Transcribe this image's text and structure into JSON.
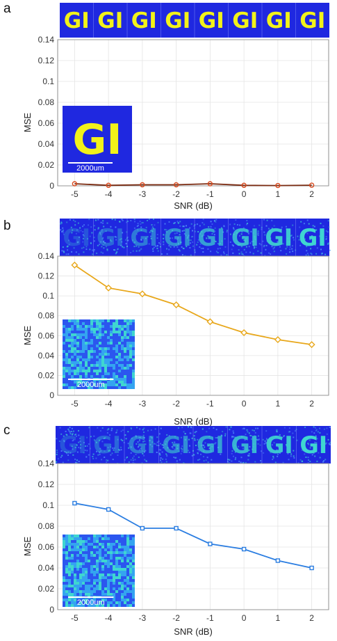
{
  "panel_labels": [
    "a",
    "b",
    "c"
  ],
  "strip_text": "GI",
  "inset_scale_labels": [
    "2000um",
    "2000um",
    "2000um"
  ],
  "colors": {
    "panel_a_line": "#d94a1e",
    "panel_a_line_dark": "#7a2a10",
    "panel_b_line": "#e8a71a",
    "panel_c_line": "#2a7de1",
    "background_blue": "#1f28e0",
    "text_yellow": "#f2f21a",
    "noise_cyan": "#3fd6d0"
  },
  "chart_data": [
    {
      "type": "line",
      "panel": "a",
      "xlabel": "SNR (dB)",
      "ylabel": "MSE",
      "x": [
        -5,
        -4,
        -3,
        -2,
        -1,
        0,
        1,
        2
      ],
      "values": [
        0.002,
        0.0005,
        0.001,
        0.001,
        0.002,
        0.0005,
        0.0003,
        0.0006
      ],
      "xlim": [
        -5.5,
        2.5
      ],
      "ylim": [
        0,
        0.14
      ],
      "yticks": [
        "0",
        "0.02",
        "0.04",
        "0.06",
        "0.08",
        "0.1",
        "0.12",
        "0.14"
      ],
      "xticks": [
        "-5",
        "-4",
        "-3",
        "-2",
        "-1",
        "0",
        "1",
        "2"
      ],
      "marker": "circle",
      "grid": true
    },
    {
      "type": "line",
      "panel": "b",
      "xlabel": "SNR (dB)",
      "ylabel": "MSE",
      "x": [
        -5,
        -4,
        -3,
        -2,
        -1,
        0,
        1,
        2
      ],
      "values": [
        0.131,
        0.108,
        0.102,
        0.091,
        0.074,
        0.063,
        0.056,
        0.051
      ],
      "xlim": [
        -5.5,
        2.5
      ],
      "ylim": [
        0,
        0.14
      ],
      "yticks": [
        "0",
        "0.02",
        "0.04",
        "0.06",
        "0.08",
        "0.1",
        "0.12",
        "0.14"
      ],
      "xticks": [
        "-5",
        "-4",
        "-3",
        "-2",
        "-1",
        "0",
        "1",
        "2"
      ],
      "marker": "diamond",
      "grid": true
    },
    {
      "type": "line",
      "panel": "c",
      "xlabel": "SNR (dB)",
      "ylabel": "MSE",
      "x": [
        -5,
        -4,
        -3,
        -2,
        -1,
        0,
        1,
        2
      ],
      "values": [
        0.102,
        0.096,
        0.078,
        0.078,
        0.063,
        0.058,
        0.047,
        0.04
      ],
      "xlim": [
        -5.5,
        2.5
      ],
      "ylim": [
        0,
        0.14
      ],
      "yticks": [
        "0",
        "0.02",
        "0.04",
        "0.06",
        "0.08",
        "0.1",
        "0.12",
        "0.14"
      ],
      "xticks": [
        "-5",
        "-4",
        "-3",
        "-2",
        "-1",
        "0",
        "1",
        "2"
      ],
      "marker": "square",
      "grid": true
    }
  ]
}
